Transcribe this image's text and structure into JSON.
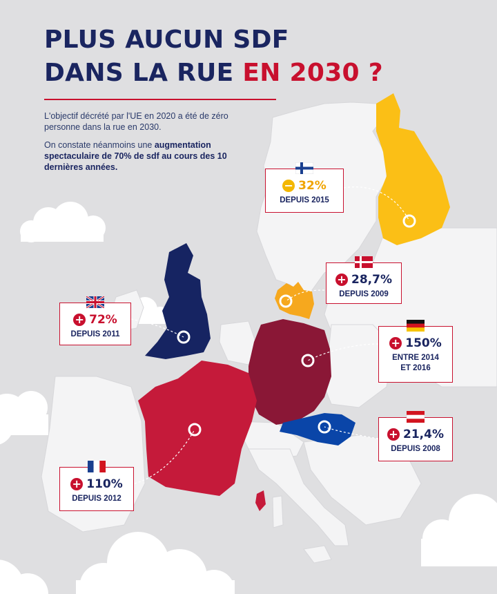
{
  "title": {
    "line1": "PLUS AUCUN SDF",
    "line2_main": "DANS LA RUE ",
    "line2_accent": "EN 2030 ?"
  },
  "intro": {
    "paragraph1": "L'objectif décrété par l'UE en 2020 a été de zéro personne dans la rue en 2030.",
    "paragraph2_start": "On constate néanmoins une ",
    "paragraph2_bold": "augmentation spectaculaire de 70% de sdf au cours des 10 dernières années."
  },
  "colors": {
    "navy": "#1a2560",
    "red": "#c8102e",
    "finland": "#fbbf16",
    "denmark": "#f6a81e",
    "germany": "#8a1736",
    "france": "#c51a3a",
    "uk": "#162462",
    "austria": "#0a45a8",
    "land": "#f4f4f5"
  },
  "cards": {
    "finland": {
      "sign": "−",
      "value": "32%",
      "since": "DEPUIS 2015",
      "flag": "finland-flag"
    },
    "denmark": {
      "sign": "+",
      "value": "28,7%",
      "since": "DEPUIS 2009",
      "flag": "denmark-flag"
    },
    "uk": {
      "sign": "+",
      "value": "72%",
      "since": "DEPUIS 2011",
      "flag": "uk-flag"
    },
    "germany": {
      "sign": "+",
      "value": "150%",
      "since_line1": "ENTRE 2014",
      "since_line2": "ET 2016",
      "flag": "germany-flag"
    },
    "austria": {
      "sign": "+",
      "value": "21,4%",
      "since": "DEPUIS 2008",
      "flag": "austria-flag"
    },
    "france": {
      "sign": "+",
      "value": "110%",
      "since": "DEPUIS 2012",
      "flag": "france-flag"
    }
  }
}
